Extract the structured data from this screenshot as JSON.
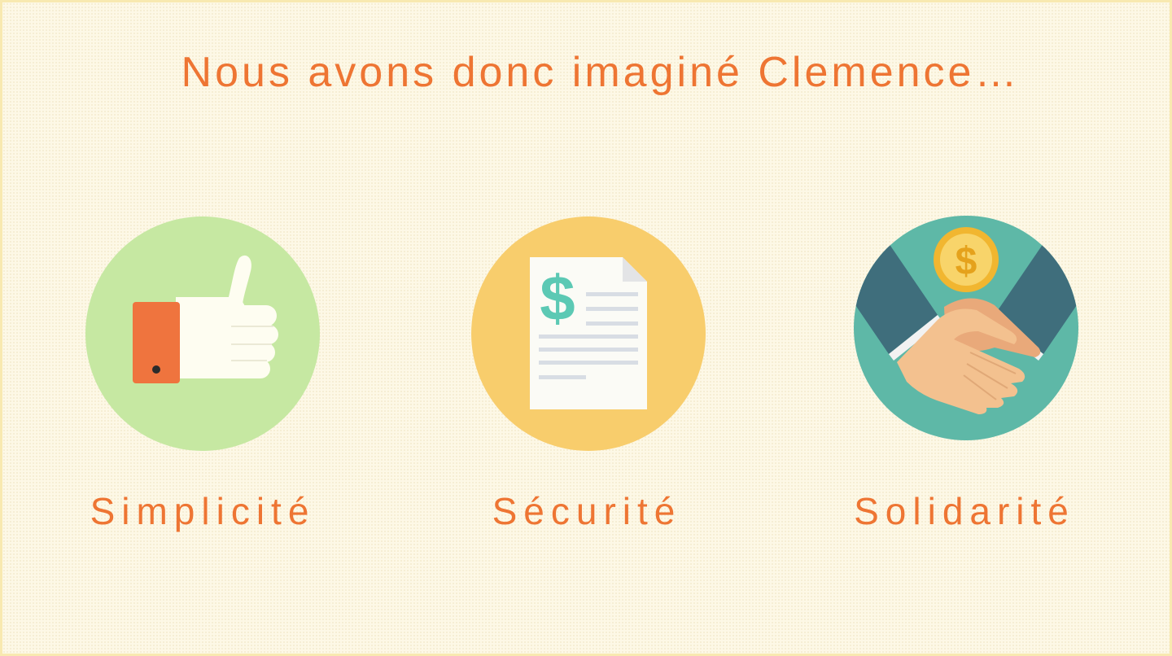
{
  "slide": {
    "title": "Nous avons donc imaginé Clemence…",
    "items": [
      {
        "label": "Simplicité",
        "icon": "thumbs-up-icon",
        "circle_color": "#c6e8a2"
      },
      {
        "label": "Sécurité",
        "icon": "dollar-document-icon",
        "circle_color": "#f8cd6c"
      },
      {
        "label": "Solidarité",
        "icon": "handshake-coin-icon",
        "circle_color": "#5eb8a7"
      }
    ],
    "colors": {
      "accent": "#ee7533",
      "background": "#fdf8e6"
    }
  }
}
